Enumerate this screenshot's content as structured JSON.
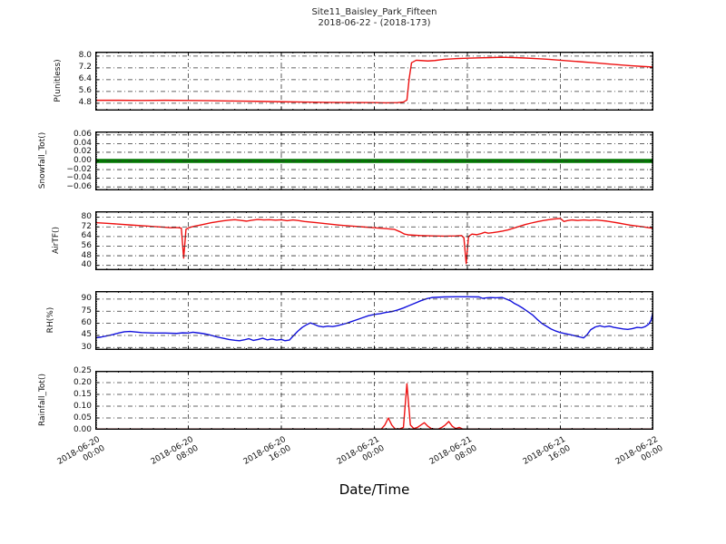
{
  "title": {
    "line1": "Site11_Baisley_Park_Fifteen",
    "line2": "2018-06-22 - (2018-173)"
  },
  "xlabel": "Date/Time",
  "colors": {
    "series_red": "#ee1111",
    "series_green": "#007700",
    "series_blue": "#1111dd",
    "grid": "#333333",
    "frame": "#000000"
  },
  "x_axis": {
    "range_hours": [
      0,
      48
    ],
    "major_tick_hours": [
      0,
      8,
      16,
      24,
      32,
      40,
      48
    ],
    "minor_step_hours": 1,
    "tick_labels": [
      [
        "2018-06-20",
        "00:00"
      ],
      [
        "2018-06-20",
        "08:00"
      ],
      [
        "2018-06-20",
        "16:00"
      ],
      [
        "2018-06-21",
        "00:00"
      ],
      [
        "2018-06-21",
        "08:00"
      ],
      [
        "2018-06-21",
        "16:00"
      ],
      [
        "2018-06-22",
        "00:00"
      ]
    ]
  },
  "chart_data": [
    {
      "type": "line",
      "name": "p-unitless",
      "ylabel": "P(unitless)",
      "line_color": "#ee1111",
      "line_width": 1.4,
      "ylim": [
        4.3,
        8.3
      ],
      "yminor_step": 0.2,
      "yticks": [
        {
          "v": 8.0,
          "label": "8.0"
        },
        {
          "v": 7.2,
          "label": "7.2"
        },
        {
          "v": 6.4,
          "label": "6.4"
        },
        {
          "v": 5.6,
          "label": "5.6"
        },
        {
          "v": 4.8,
          "label": "4.8"
        }
      ],
      "series": {
        "x_hours": [
          0,
          2,
          4,
          6,
          8,
          10,
          12,
          14,
          16,
          18,
          20,
          22,
          24,
          25,
          26,
          26.5,
          26.8,
          27.0,
          27.2,
          27.6,
          28.0,
          28.6,
          29.2,
          30,
          31,
          32,
          33,
          34,
          35,
          36,
          37,
          38,
          39,
          40,
          41,
          42,
          43,
          44,
          45,
          46,
          47,
          48
        ],
        "values": [
          5.0,
          5.0,
          4.99,
          5.0,
          4.99,
          4.97,
          4.95,
          4.93,
          4.9,
          4.88,
          4.86,
          4.85,
          4.84,
          4.83,
          4.84,
          4.88,
          5.02,
          6.5,
          7.55,
          7.72,
          7.7,
          7.67,
          7.7,
          7.78,
          7.83,
          7.86,
          7.88,
          7.9,
          7.92,
          7.9,
          7.87,
          7.83,
          7.78,
          7.72,
          7.66,
          7.6,
          7.54,
          7.47,
          7.41,
          7.35,
          7.3,
          7.26
        ]
      }
    },
    {
      "type": "line",
      "name": "snowfall-tot",
      "ylabel": "Snowfall_Tot()",
      "line_color": "#007700",
      "line_width": 4.5,
      "ylim": [
        -0.068,
        0.068
      ],
      "yminor_step": 0.005,
      "yticks": [
        {
          "v": 0.06,
          "label": "0.06"
        },
        {
          "v": 0.04,
          "label": "0.04"
        },
        {
          "v": 0.02,
          "label": "0.02"
        },
        {
          "v": 0.0,
          "label": "0.00"
        },
        {
          "v": -0.02,
          "label": "−0.02"
        },
        {
          "v": -0.04,
          "label": "−0.04"
        },
        {
          "v": -0.06,
          "label": "−0.06"
        }
      ],
      "series": {
        "x_hours": [
          0,
          48
        ],
        "values": [
          0.0,
          0.0
        ]
      }
    },
    {
      "type": "line",
      "name": "airtf",
      "ylabel": "AirTF()",
      "line_color": "#ee1111",
      "line_width": 1.4,
      "ylim": [
        36,
        85
      ],
      "yminor_step": 2,
      "yticks": [
        {
          "v": 80,
          "label": "80"
        },
        {
          "v": 72,
          "label": "72"
        },
        {
          "v": 64,
          "label": "64"
        },
        {
          "v": 56,
          "label": "56"
        },
        {
          "v": 48,
          "label": "48"
        },
        {
          "v": 40,
          "label": "40"
        }
      ],
      "series": {
        "x_hours": [
          0,
          1,
          2,
          3,
          4,
          5,
          6,
          6.5,
          7,
          7.4,
          7.6,
          7.8,
          8.1,
          8.5,
          9,
          9.5,
          10,
          10.5,
          11,
          11.5,
          12,
          12.5,
          13,
          13.5,
          14,
          14.5,
          15,
          15.5,
          16,
          16.5,
          17,
          17.5,
          18,
          19,
          20,
          21,
          22,
          23,
          24,
          25,
          25.7,
          26.2,
          26.6,
          27,
          28,
          29,
          30,
          31,
          31.5,
          31.7,
          31.9,
          32.1,
          32.4,
          32.8,
          33.2,
          33.5,
          33.8,
          34.2,
          34.6,
          35,
          35.5,
          36,
          36.5,
          37,
          37.5,
          38,
          38.5,
          39,
          39.5,
          40,
          40.3,
          40.6,
          41,
          41.5,
          42,
          42.5,
          43,
          43.5,
          44,
          44.5,
          45,
          45.5,
          46,
          46.5,
          47,
          47.5,
          48
        ],
        "values": [
          75.5,
          75,
          74.3,
          73.6,
          73,
          72.3,
          71.7,
          71.3,
          71.5,
          71,
          46,
          70,
          71.5,
          72.5,
          73.5,
          74.5,
          75.5,
          76.3,
          77,
          77.6,
          78,
          77.4,
          76.8,
          77.6,
          78.2,
          77.8,
          78,
          77.6,
          77.9,
          77.1,
          77.8,
          77.2,
          76.5,
          75.5,
          74.5,
          73.5,
          72.7,
          72,
          71.3,
          70.5,
          70,
          68,
          66,
          65.3,
          64.8,
          64.5,
          64.3,
          64.5,
          64.8,
          63,
          41.5,
          64,
          66,
          65.5,
          66.5,
          67.5,
          66.8,
          67.2,
          67.8,
          68.5,
          69.5,
          71,
          72.5,
          74,
          75.2,
          76.3,
          77.2,
          78,
          78.6,
          79,
          76.5,
          77.2,
          77.8,
          77.3,
          77.8,
          77.4,
          77.8,
          77.3,
          76.8,
          76,
          75.2,
          74.3,
          73.5,
          72.8,
          72.2,
          71.5,
          70.8
        ]
      }
    },
    {
      "type": "line",
      "name": "rh",
      "ylabel": "RH(%)",
      "line_color": "#1111dd",
      "line_width": 1.4,
      "ylim": [
        27,
        100
      ],
      "yminor_step": 3,
      "yticks": [
        {
          "v": 90,
          "label": "90"
        },
        {
          "v": 75,
          "label": "75"
        },
        {
          "v": 60,
          "label": "60"
        },
        {
          "v": 45,
          "label": "45"
        },
        {
          "v": 30,
          "label": "30"
        }
      ],
      "series": {
        "x_hours": [
          0,
          0.5,
          1,
          1.5,
          2,
          2.5,
          3,
          3.5,
          4,
          5,
          6,
          7,
          7.5,
          8,
          8.4,
          8.8,
          9.2,
          9.6,
          10,
          10.5,
          11,
          11.5,
          12,
          12.4,
          12.8,
          13.2,
          13.6,
          14,
          14.4,
          14.8,
          15.2,
          15.6,
          16,
          16.3,
          16.7,
          17,
          17.4,
          17.8,
          18.2,
          18.5,
          18.8,
          19.2,
          19.6,
          20,
          20.4,
          20.8,
          21.2,
          21.6,
          22,
          22.5,
          23,
          23.5,
          24,
          24.5,
          25,
          25.5,
          26,
          26.5,
          27,
          27.5,
          28,
          28.5,
          29,
          30,
          31,
          32,
          33,
          33.3,
          33.7,
          34,
          34.5,
          35,
          35.3,
          35.7,
          36,
          36.4,
          36.8,
          37.2,
          37.6,
          38,
          38.4,
          38.8,
          39.2,
          39.6,
          40,
          40.5,
          41,
          41.4,
          41.7,
          42,
          42.3,
          42.6,
          43,
          43.4,
          43.8,
          44.2,
          44.6,
          45,
          45.4,
          45.8,
          46.2,
          46.6,
          47,
          47.3,
          47.6,
          47.8,
          48
        ],
        "values": [
          42,
          43,
          44.5,
          46,
          48,
          49.5,
          50,
          49.3,
          48.5,
          48,
          48,
          47.5,
          48.2,
          48,
          49,
          48.2,
          47.5,
          46.5,
          45,
          43,
          41.5,
          40,
          39,
          38.5,
          39.5,
          41,
          38.8,
          40,
          41.5,
          39.5,
          40.5,
          39.3,
          40,
          38.5,
          39.3,
          44,
          50,
          55,
          58.5,
          60.5,
          59,
          56.5,
          55.5,
          56.5,
          56,
          57,
          58.5,
          60,
          62,
          64.5,
          67,
          69.5,
          71,
          72,
          73.5,
          74.5,
          76.5,
          79,
          82,
          85,
          88,
          90.5,
          92,
          92.7,
          92.9,
          92.9,
          92.7,
          91,
          91.6,
          91.9,
          91.7,
          92,
          90.3,
          88,
          85,
          82,
          78.5,
          74.5,
          70.5,
          65,
          60,
          56.5,
          53,
          50.5,
          48.5,
          47,
          45.5,
          44,
          43,
          42,
          46,
          52,
          55.5,
          57,
          55.5,
          56.5,
          55,
          54,
          53,
          52.5,
          53.5,
          55,
          54.5,
          56,
          59,
          64,
          76
        ]
      }
    },
    {
      "type": "line",
      "name": "rainfall-tot",
      "ylabel": "Rainfall_Tot()",
      "line_color": "#ee1111",
      "line_width": 1.4,
      "ylim": [
        0,
        0.25
      ],
      "yminor_step": 0.01,
      "yticks": [
        {
          "v": 0.25,
          "label": "0.25"
        },
        {
          "v": 0.2,
          "label": "0.20"
        },
        {
          "v": 0.15,
          "label": "0.15"
        },
        {
          "v": 0.1,
          "label": "0.10"
        },
        {
          "v": 0.05,
          "label": "0.05"
        },
        {
          "v": 0.0,
          "label": "0.00"
        }
      ],
      "series": {
        "x_hours": [
          0,
          24,
          24.6,
          24.9,
          25.2,
          25.5,
          25.8,
          26.2,
          26.5,
          26.8,
          27.1,
          27.4,
          27.7,
          28,
          28.3,
          28.6,
          28.9,
          29.2,
          29.5,
          29.8,
          30.1,
          30.4,
          30.7,
          31,
          31.3,
          31.6,
          32,
          48
        ],
        "values": [
          0,
          0,
          0.002,
          0.02,
          0.05,
          0.02,
          0.003,
          0.004,
          0.01,
          0.195,
          0.02,
          0.005,
          0.01,
          0.02,
          0.03,
          0.015,
          0.005,
          0.003,
          0.002,
          0.01,
          0.02,
          0.035,
          0.015,
          0.005,
          0.01,
          0.003,
          0,
          0
        ]
      }
    }
  ]
}
